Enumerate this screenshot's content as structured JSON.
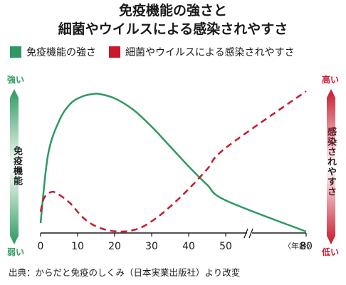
{
  "title_line1": "免疫機能の強さと",
  "title_line2": "細菌やウイルスによる感染されやすさ",
  "legend": [
    {
      "label": "免疫機能の強さ",
      "color": "#2e9960"
    },
    {
      "label": "細菌やウイルスによる感染されやすさ",
      "color": "#c8192e"
    }
  ],
  "left_axis": {
    "top": "強い",
    "label": "免疫機能",
    "bottom": "弱い",
    "color": "#2e9960"
  },
  "right_axis": {
    "top": "高い",
    "label": "感染されやすさ",
    "bottom": "低い",
    "color": "#c8192e"
  },
  "x_unit": "〈年齢〉",
  "source": "出典：からだと免疫のしくみ（日本実業出版社）より改変",
  "chart_data": {
    "type": "line",
    "x_ticks": [
      "0",
      "10",
      "20",
      "30",
      "40",
      "50",
      "80"
    ],
    "axis_break_between": [
      "50",
      "80"
    ],
    "series": [
      {
        "name": "免疫機能の強さ",
        "style": "solid",
        "color": "#2e9960",
        "x": [
          0,
          2,
          5,
          8,
          11,
          14,
          16,
          20,
          25,
          30,
          35,
          40,
          45,
          50,
          80
        ],
        "y": [
          0.07,
          0.55,
          0.79,
          0.91,
          0.96,
          0.98,
          0.98,
          0.95,
          0.87,
          0.75,
          0.61,
          0.47,
          0.34,
          0.23,
          0.01
        ]
      },
      {
        "name": "細菌やウイルスによる感染されやすさ",
        "style": "dashed",
        "color": "#c8192e",
        "x": [
          0,
          1,
          3,
          5,
          8,
          11,
          14,
          18,
          22,
          25,
          28,
          32,
          36,
          40,
          45,
          50,
          80
        ],
        "y": [
          0.15,
          0.25,
          0.29,
          0.27,
          0.21,
          0.12,
          0.06,
          0.02,
          0.01,
          0.02,
          0.05,
          0.12,
          0.21,
          0.31,
          0.45,
          0.6,
          1.0
        ]
      }
    ]
  }
}
